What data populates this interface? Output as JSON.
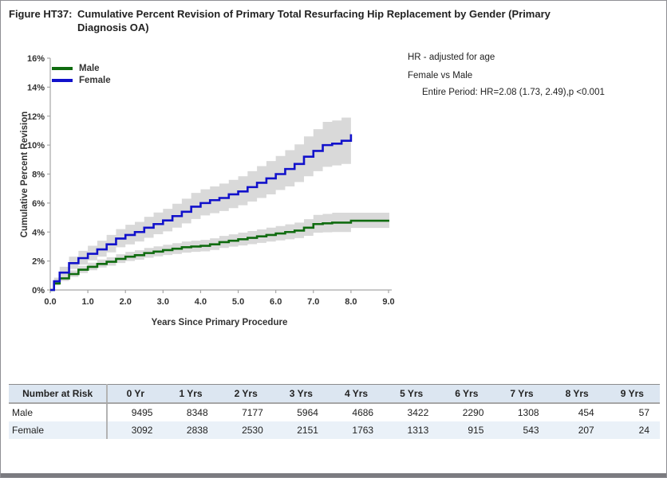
{
  "title": {
    "label": "Figure HT37:",
    "line1": "Cumulative Percent Revision of Primary Total Resurfacing Hip Replacement by Gender (Primary",
    "line2": "Diagnosis OA)"
  },
  "annotation": {
    "line1": "HR - adjusted for age",
    "line2": "Female vs Male",
    "line3": "Entire Period: HR=2.08 (1.73, 2.49),p <0.001"
  },
  "chart_data": {
    "type": "line",
    "step": true,
    "title": "",
    "xlabel": "Years Since Primary Procedure",
    "ylabel": "Cumulative Percent Revision",
    "xlim": [
      0,
      9
    ],
    "ylim": [
      0,
      16
    ],
    "xtick_values": [
      0,
      1,
      2,
      3,
      4,
      5,
      6,
      7,
      8,
      9
    ],
    "xtick_labels": [
      "0.0",
      "1.0",
      "2.0",
      "3.0",
      "4.0",
      "5.0",
      "6.0",
      "7.0",
      "8.0",
      "9.0"
    ],
    "ytick_values": [
      0,
      2,
      4,
      6,
      8,
      10,
      12,
      14,
      16
    ],
    "ytick_labels": [
      "0%",
      "2%",
      "4%",
      "6%",
      "8%",
      "10%",
      "12%",
      "14%",
      "16%"
    ],
    "grid": false,
    "legend_position": "top-left",
    "band_color": "#d9d9d9",
    "axis_color": "#a6a6a6",
    "series": [
      {
        "name": "Male",
        "color": "#0f6b0f",
        "x": [
          0,
          0.1,
          0.25,
          0.5,
          0.75,
          1,
          1.25,
          1.5,
          1.75,
          2,
          2.25,
          2.5,
          2.75,
          3,
          3.25,
          3.5,
          3.75,
          4,
          4.25,
          4.5,
          4.75,
          5,
          5.25,
          5.5,
          5.75,
          6,
          6.25,
          6.5,
          6.75,
          7,
          7.25,
          7.5,
          8,
          9.02
        ],
        "y": [
          0,
          0.45,
          0.8,
          1.1,
          1.4,
          1.6,
          1.8,
          1.95,
          2.15,
          2.3,
          2.4,
          2.55,
          2.65,
          2.75,
          2.85,
          2.95,
          3.0,
          3.05,
          3.15,
          3.3,
          3.4,
          3.5,
          3.6,
          3.7,
          3.8,
          3.9,
          4.0,
          4.1,
          4.3,
          4.55,
          4.6,
          4.65,
          4.78,
          4.78
        ],
        "lo": [
          0,
          0.32,
          0.62,
          0.9,
          1.17,
          1.36,
          1.55,
          1.68,
          1.86,
          2.0,
          2.09,
          2.23,
          2.32,
          2.41,
          2.49,
          2.58,
          2.63,
          2.67,
          2.76,
          2.9,
          2.99,
          3.07,
          3.16,
          3.25,
          3.34,
          3.42,
          3.5,
          3.58,
          3.74,
          3.95,
          3.98,
          4.0,
          4.28,
          4.28
        ],
        "hi": [
          0,
          0.62,
          1.02,
          1.35,
          1.66,
          1.88,
          2.1,
          2.26,
          2.47,
          2.63,
          2.74,
          2.9,
          3.01,
          3.12,
          3.23,
          3.35,
          3.4,
          3.46,
          3.57,
          3.73,
          3.84,
          3.96,
          4.07,
          4.18,
          4.3,
          4.41,
          4.53,
          4.65,
          4.89,
          5.18,
          5.25,
          5.33,
          5.33,
          5.35
        ]
      },
      {
        "name": "Female",
        "color": "#1111cb",
        "x": [
          0,
          0.1,
          0.25,
          0.5,
          0.75,
          1,
          1.25,
          1.5,
          1.75,
          2,
          2.25,
          2.5,
          2.75,
          3,
          3.25,
          3.5,
          3.75,
          4,
          4.25,
          4.5,
          4.75,
          5,
          5.25,
          5.5,
          5.75,
          6,
          6.25,
          6.5,
          6.75,
          7,
          7.25,
          7.5,
          7.75,
          8
        ],
        "y": [
          0,
          0.6,
          1.2,
          1.85,
          2.2,
          2.5,
          2.8,
          3.15,
          3.55,
          3.8,
          4.0,
          4.3,
          4.55,
          4.8,
          5.1,
          5.4,
          5.75,
          6.0,
          6.2,
          6.35,
          6.6,
          6.8,
          7.1,
          7.4,
          7.7,
          8.0,
          8.35,
          8.7,
          9.2,
          9.6,
          10.0,
          10.1,
          10.3,
          10.75
        ],
        "lo": [
          0,
          0.4,
          0.9,
          1.45,
          1.75,
          2.05,
          2.3,
          2.6,
          2.95,
          3.15,
          3.35,
          3.6,
          3.85,
          4.05,
          4.3,
          4.6,
          4.9,
          5.15,
          5.3,
          5.45,
          5.65,
          5.85,
          6.1,
          6.35,
          6.6,
          6.9,
          7.15,
          7.45,
          7.85,
          8.2,
          8.5,
          8.6,
          8.7,
          9.2
        ],
        "hi": [
          0,
          0.85,
          1.6,
          2.3,
          2.7,
          3.05,
          3.4,
          3.8,
          4.2,
          4.5,
          4.7,
          5.05,
          5.35,
          5.6,
          5.95,
          6.3,
          6.7,
          6.95,
          7.15,
          7.35,
          7.6,
          7.85,
          8.2,
          8.55,
          8.9,
          9.25,
          9.65,
          10.05,
          10.6,
          11.1,
          11.6,
          11.7,
          11.9,
          12.8
        ]
      }
    ]
  },
  "risk_table": {
    "columns": [
      "Number at Risk",
      "0 Yr",
      "1 Yrs",
      "2 Yrs",
      "3 Yrs",
      "4 Yrs",
      "5 Yrs",
      "6 Yrs",
      "7 Yrs",
      "8 Yrs",
      "9 Yrs"
    ],
    "rows": [
      {
        "label": "Male",
        "values": [
          "9495",
          "8348",
          "7177",
          "5964",
          "4686",
          "3422",
          "2290",
          "1308",
          "454",
          "57"
        ]
      },
      {
        "label": "Female",
        "values": [
          "3092",
          "2838",
          "2530",
          "2151",
          "1763",
          "1313",
          "915",
          "543",
          "207",
          "24"
        ]
      }
    ],
    "header_bg": "#dce6f1",
    "alt_row_bg": "#eaf1f8"
  }
}
